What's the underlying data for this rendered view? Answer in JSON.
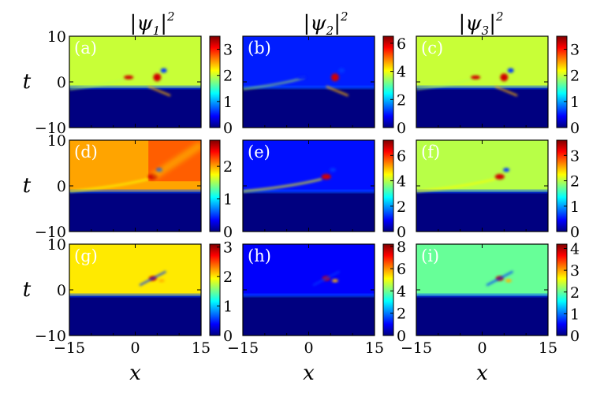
{
  "chart_data": {
    "type": "heatmap",
    "column_titles": [
      "|ψ1|2",
      "|ψ2|2",
      "|ψ3|2"
    ],
    "column_title_parts": [
      {
        "base": "|ψ",
        "sub": "1",
        "close": "|",
        "sup": "2"
      },
      {
        "base": "|ψ",
        "sub": "2",
        "close": "|",
        "sup": "2"
      },
      {
        "base": "|ψ",
        "sub": "3",
        "close": "|",
        "sup": "2"
      }
    ],
    "xlabel": "x",
    "ylabel": "t",
    "xlim": [
      -15,
      15
    ],
    "ylim": [
      -10,
      10
    ],
    "xticks": [
      -15,
      0,
      15
    ],
    "yticks": [
      -10,
      0,
      10
    ],
    "xtick_labels": [
      "−15",
      "0",
      "15"
    ],
    "ytick_labels": [
      "−10",
      "0",
      "10"
    ],
    "colormap": "jet",
    "panels": [
      {
        "label": "(a)",
        "row": 0,
        "col": 0,
        "background_level": 2.0,
        "colorbar_max": 3.5,
        "colorbar_ticks": [
          0,
          1,
          2,
          3
        ],
        "colorbar_tick_labels": [
          "0",
          "1",
          "2",
          "3"
        ]
      },
      {
        "label": "(b)",
        "row": 0,
        "col": 1,
        "background_level": 1.0,
        "colorbar_max": 6.5,
        "colorbar_ticks": [
          0,
          2,
          4,
          6
        ],
        "colorbar_tick_labels": [
          "0",
          "2",
          "4",
          "6"
        ]
      },
      {
        "label": "(c)",
        "row": 0,
        "col": 2,
        "background_level": 2.0,
        "colorbar_max": 3.5,
        "colorbar_ticks": [
          0,
          1,
          2,
          3
        ],
        "colorbar_tick_labels": [
          "0",
          "1",
          "2",
          "3"
        ]
      },
      {
        "label": "(d)",
        "row": 1,
        "col": 0,
        "background_level": 2.0,
        "colorbar_max": 2.8,
        "colorbar_ticks": [
          0,
          1,
          2
        ],
        "colorbar_tick_labels": [
          "0",
          "1",
          "2"
        ]
      },
      {
        "label": "(e)",
        "row": 1,
        "col": 1,
        "background_level": 1.0,
        "colorbar_max": 7.2,
        "colorbar_ticks": [
          0,
          2,
          4,
          6
        ],
        "colorbar_tick_labels": [
          "0",
          "2",
          "4",
          "6"
        ]
      },
      {
        "label": "(f)",
        "row": 1,
        "col": 2,
        "background_level": 2.0,
        "colorbar_max": 3.6,
        "colorbar_ticks": [
          0,
          1,
          2,
          3
        ],
        "colorbar_tick_labels": [
          "0",
          "1",
          "2",
          "3"
        ]
      },
      {
        "label": "(g)",
        "row": 2,
        "col": 0,
        "background_level": 2.0,
        "colorbar_max": 3.1,
        "colorbar_ticks": [
          0,
          1,
          2,
          3
        ],
        "colorbar_tick_labels": [
          "0",
          "1",
          "2",
          "3"
        ]
      },
      {
        "label": "(h)",
        "row": 2,
        "col": 1,
        "background_level": 1.0,
        "colorbar_max": 8.2,
        "colorbar_ticks": [
          0,
          2,
          4,
          6,
          8
        ],
        "colorbar_tick_labels": [
          "0",
          "2",
          "4",
          "6",
          "8"
        ]
      },
      {
        "label": "(i)",
        "row": 2,
        "col": 2,
        "background_level": 2.0,
        "colorbar_max": 4.2,
        "colorbar_ticks": [
          0,
          1,
          2,
          3,
          4
        ],
        "colorbar_tick_labels": [
          "0",
          "1",
          "2",
          "3",
          "4"
        ]
      }
    ]
  }
}
